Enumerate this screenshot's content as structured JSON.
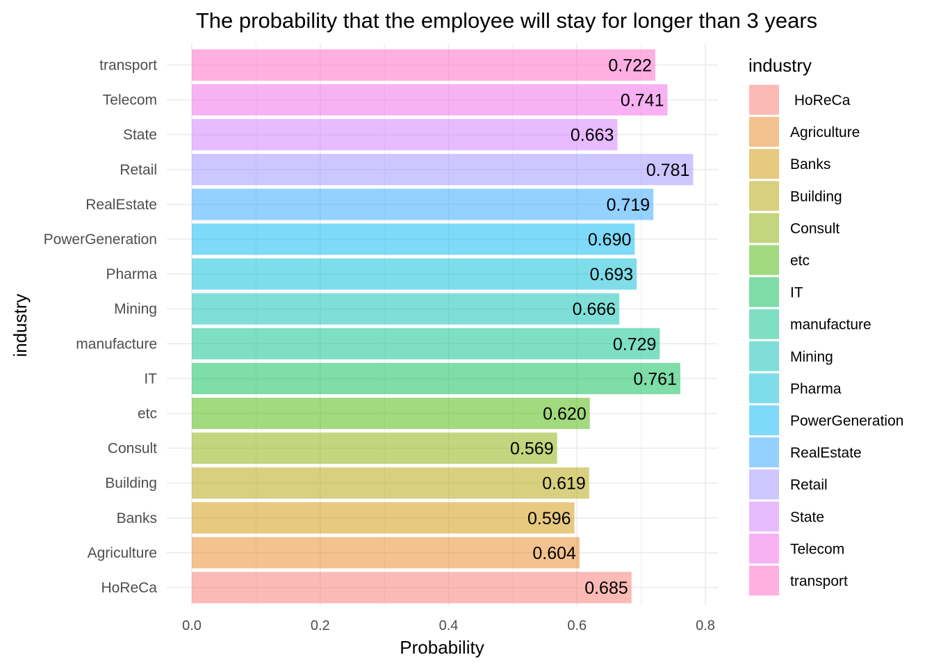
{
  "chart_data": {
    "type": "bar",
    "orientation": "horizontal",
    "title": "The probability that the employee will stay for longer than 3 years",
    "xlabel": "Probability",
    "ylabel": "industry",
    "xlim": [
      0,
      0.8
    ],
    "xticks": [
      "0.0",
      "0.2",
      "0.4",
      "0.6",
      "0.8"
    ],
    "grid": true,
    "legend": {
      "title": "industry",
      "position": "right"
    },
    "categories": [
      " HoReCa",
      "Agriculture",
      "Banks",
      "Building",
      "Consult",
      "etc",
      "IT",
      "manufacture",
      "Mining",
      "Pharma",
      "PowerGeneration",
      "RealEstate",
      "Retail",
      "State",
      "Telecom",
      "transport"
    ],
    "y_tick_labels": [
      "HoReCa",
      "Agriculture",
      "Banks",
      "Building",
      "Consult",
      "etc",
      "IT",
      "manufacture",
      "Mining",
      "Pharma",
      "PowerGeneration",
      "RealEstate",
      "Retail",
      "State",
      "Telecom",
      "transport"
    ],
    "values": [
      0.685,
      0.604,
      0.596,
      0.619,
      0.569,
      0.62,
      0.761,
      0.729,
      0.666,
      0.693,
      0.69,
      0.719,
      0.781,
      0.663,
      0.741,
      0.722
    ],
    "value_labels": [
      "0.685",
      "0.604",
      "0.596",
      "0.619",
      "0.569",
      "0.620",
      "0.761",
      "0.729",
      "0.666",
      "0.693",
      "0.690",
      "0.719",
      "0.781",
      "0.663",
      "0.741",
      "0.722"
    ],
    "colors": [
      "#F8766D",
      "#E7851E",
      "#D09400",
      "#B2A100",
      "#89AC00",
      "#45B500",
      "#00BC51",
      "#00C087",
      "#00C0B2",
      "#00BCD6",
      "#00B3F2",
      "#29A3FF",
      "#9C8DFF",
      "#D277FF",
      "#F166E8",
      "#FF61C7"
    ],
    "bar_opacity": 0.5
  }
}
